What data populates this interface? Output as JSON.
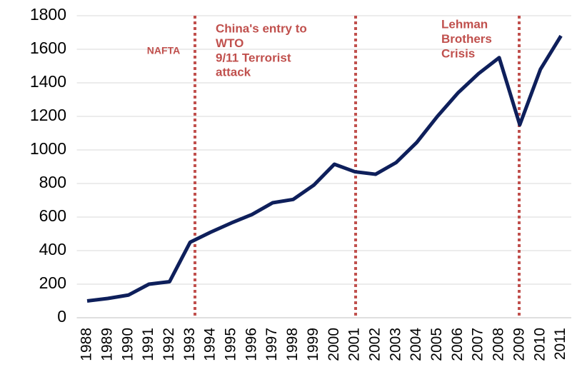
{
  "chart_data": {
    "type": "line",
    "categories": [
      "1988",
      "1989",
      "1990",
      "1991",
      "1992",
      "1993",
      "1994",
      "1995",
      "1996",
      "1997",
      "1998",
      "1999",
      "2000",
      "2001",
      "2002",
      "2003",
      "2004",
      "2005",
      "2006",
      "2007",
      "2008",
      "2009",
      "2010",
      "2011"
    ],
    "series": [
      {
        "color": "#0e1f5b",
        "values": [
          100,
          115,
          135,
          200,
          215,
          450,
          510,
          565,
          615,
          685,
          705,
          790,
          915,
          870,
          855,
          925,
          1045,
          1200,
          1340,
          1455,
          1550,
          1150,
          1480,
          1680
        ]
      }
    ],
    "ylim": [
      0,
      1800
    ],
    "yticks": [
      0,
      200,
      400,
      600,
      800,
      1000,
      1200,
      1400,
      1600,
      1800
    ],
    "grid": true,
    "annotations": [
      {
        "lines": [
          "NAFTA"
        ],
        "color": "#c0504d"
      },
      {
        "lines": [
          "China's entry to",
          "WTO",
          "9/11 Terrorist",
          "attack"
        ],
        "color": "#c0504d"
      },
      {
        "lines": [
          "Lehman",
          "Brothers",
          "Crisis"
        ],
        "color": "#c0504d"
      }
    ]
  }
}
